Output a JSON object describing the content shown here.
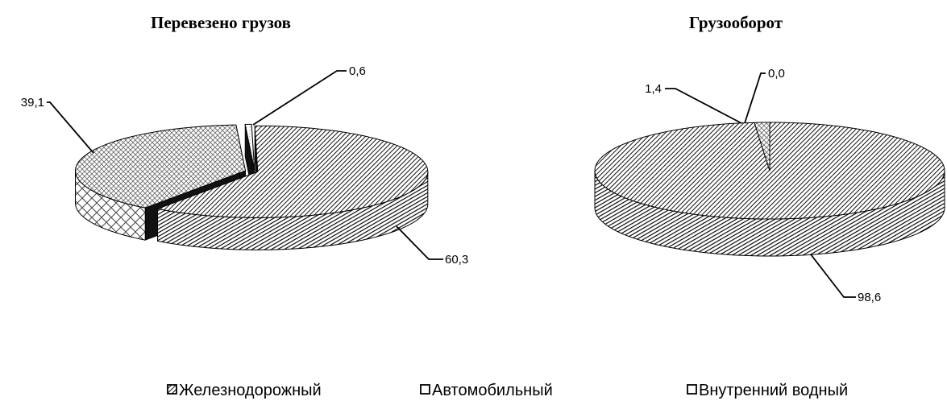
{
  "legend": [
    {
      "label": "Железнодорожный",
      "pattern": "rail"
    },
    {
      "label": "Автомобильный",
      "pattern": "auto"
    },
    {
      "label": "Внутренний водный",
      "pattern": "water"
    }
  ],
  "chart_data": [
    {
      "type": "pie",
      "title": "Перевезено грузов",
      "categories": [
        "Железнодорожный",
        "Автомобильный",
        "Внутренний водный"
      ],
      "values": [
        60.3,
        39.1,
        0.6
      ],
      "labels": [
        "60,3",
        "39,1",
        "0,6"
      ],
      "exploded": true
    },
    {
      "type": "pie",
      "title": "Грузооборот",
      "categories": [
        "Железнодорожный",
        "Автомобильный",
        "Внутренний водный"
      ],
      "values": [
        98.6,
        1.4,
        0.0
      ],
      "labels": [
        "98,6",
        "1,4",
        "0,0"
      ],
      "exploded": false
    }
  ]
}
